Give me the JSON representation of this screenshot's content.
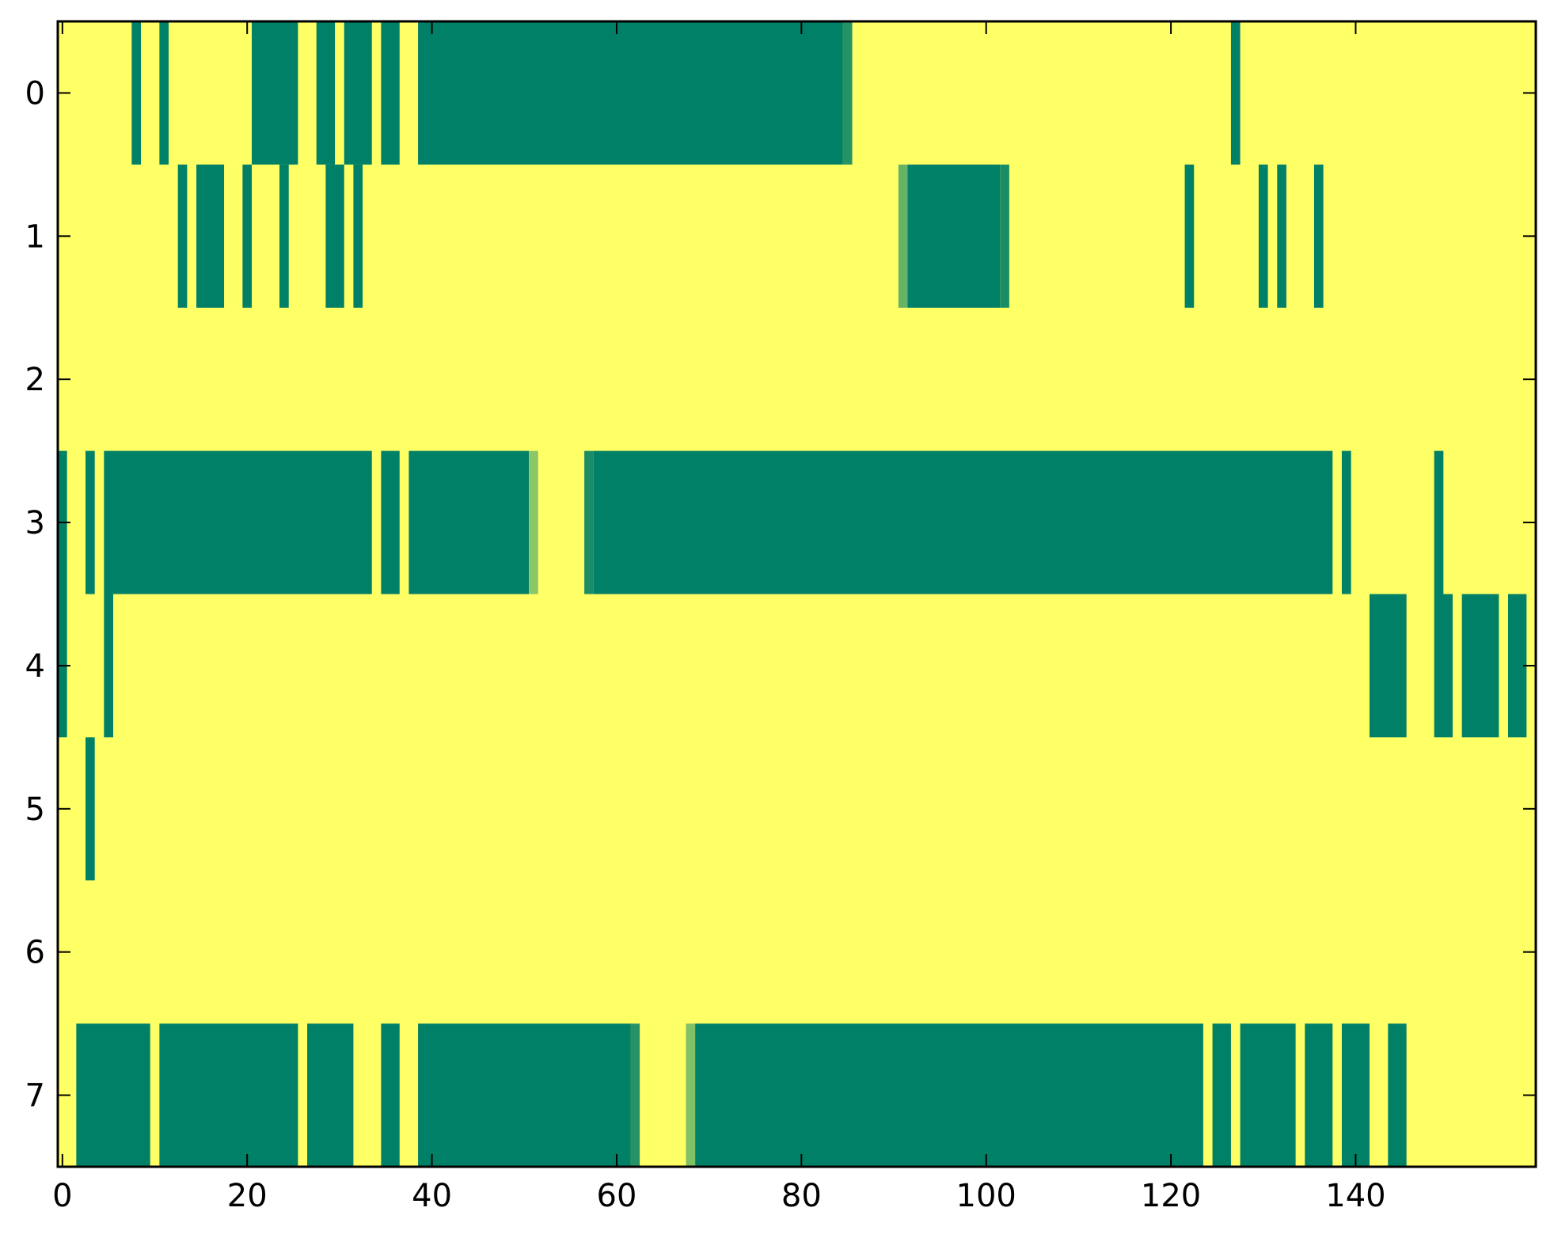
{
  "chart_data": {
    "type": "heatmap",
    "title": "",
    "xlabel": "",
    "ylabel": "",
    "xlim": [
      -0.5,
      159.5
    ],
    "ylim": [
      7.5,
      -0.5
    ],
    "x_ticks": [
      0,
      20,
      40,
      60,
      80,
      100,
      120,
      140
    ],
    "x_tick_labels": [
      "0",
      "20",
      "40",
      "60",
      "80",
      "100",
      "120",
      "140"
    ],
    "y_ticks": [
      0,
      1,
      2,
      3,
      4,
      5,
      6,
      7
    ],
    "y_tick_labels": [
      "0",
      "1",
      "2",
      "3",
      "4",
      "5",
      "6",
      "7"
    ],
    "grid": false,
    "colormap": "summer",
    "background_value": 1.0,
    "value_range": [
      0,
      1
    ],
    "colors": {
      "low": "#008066",
      "high": "#ffff66"
    },
    "rows": [
      {
        "row": 0,
        "segments": [
          {
            "start": 8,
            "end": 8,
            "value": 0
          },
          {
            "start": 11,
            "end": 11,
            "value": 0
          },
          {
            "start": 21,
            "end": 25,
            "value": 0
          },
          {
            "start": 28,
            "end": 29,
            "value": 0
          },
          {
            "start": 31,
            "end": 33,
            "value": 0
          },
          {
            "start": 35,
            "end": 36,
            "value": 0
          },
          {
            "start": 39,
            "end": 84,
            "value": 0
          },
          {
            "start": 85,
            "end": 85,
            "value": 0.15
          },
          {
            "start": 127,
            "end": 127,
            "value": 0
          }
        ]
      },
      {
        "row": 1,
        "segments": [
          {
            "start": 13,
            "end": 13,
            "value": 0
          },
          {
            "start": 15,
            "end": 17,
            "value": 0
          },
          {
            "start": 20,
            "end": 20,
            "value": 0
          },
          {
            "start": 24,
            "end": 24,
            "value": 0
          },
          {
            "start": 29,
            "end": 30,
            "value": 0
          },
          {
            "start": 32,
            "end": 32,
            "value": 0
          },
          {
            "start": 91,
            "end": 91,
            "value": 0.4
          },
          {
            "start": 92,
            "end": 101,
            "value": 0
          },
          {
            "start": 102,
            "end": 102,
            "value": 0.1
          },
          {
            "start": 122,
            "end": 122,
            "value": 0
          },
          {
            "start": 130,
            "end": 130,
            "value": 0
          },
          {
            "start": 132,
            "end": 132,
            "value": 0
          },
          {
            "start": 136,
            "end": 136,
            "value": 0
          }
        ]
      },
      {
        "row": 2,
        "segments": []
      },
      {
        "row": 3,
        "segments": [
          {
            "start": 0,
            "end": 0,
            "value": 0
          },
          {
            "start": 3,
            "end": 3,
            "value": 0
          },
          {
            "start": 5,
            "end": 33,
            "value": 0
          },
          {
            "start": 35,
            "end": 36,
            "value": 0
          },
          {
            "start": 38,
            "end": 50,
            "value": 0
          },
          {
            "start": 51,
            "end": 51,
            "value": 0.55
          },
          {
            "start": 57,
            "end": 57,
            "value": 0.1
          },
          {
            "start": 58,
            "end": 137,
            "value": 0
          },
          {
            "start": 139,
            "end": 139,
            "value": 0
          },
          {
            "start": 149,
            "end": 149,
            "value": 0
          }
        ]
      },
      {
        "row": 4,
        "segments": [
          {
            "start": 0,
            "end": 0,
            "value": 0
          },
          {
            "start": 5,
            "end": 5,
            "value": 0
          },
          {
            "start": 142,
            "end": 145,
            "value": 0
          },
          {
            "start": 149,
            "end": 150,
            "value": 0
          },
          {
            "start": 152,
            "end": 155,
            "value": 0
          },
          {
            "start": 157,
            "end": 158,
            "value": 0
          }
        ]
      },
      {
        "row": 5,
        "segments": [
          {
            "start": 3,
            "end": 3,
            "value": 0
          }
        ]
      },
      {
        "row": 6,
        "segments": []
      },
      {
        "row": 7,
        "segments": [
          {
            "start": 2,
            "end": 9,
            "value": 0
          },
          {
            "start": 11,
            "end": 25,
            "value": 0
          },
          {
            "start": 27,
            "end": 31,
            "value": 0
          },
          {
            "start": 35,
            "end": 36,
            "value": 0
          },
          {
            "start": 39,
            "end": 61,
            "value": 0
          },
          {
            "start": 62,
            "end": 62,
            "value": 0.15
          },
          {
            "start": 68,
            "end": 68,
            "value": 0.5
          },
          {
            "start": 69,
            "end": 123,
            "value": 0
          },
          {
            "start": 125,
            "end": 126,
            "value": 0
          },
          {
            "start": 128,
            "end": 133,
            "value": 0
          },
          {
            "start": 135,
            "end": 137,
            "value": 0
          },
          {
            "start": 139,
            "end": 141,
            "value": 0
          },
          {
            "start": 144,
            "end": 145,
            "value": 0
          }
        ]
      }
    ]
  }
}
